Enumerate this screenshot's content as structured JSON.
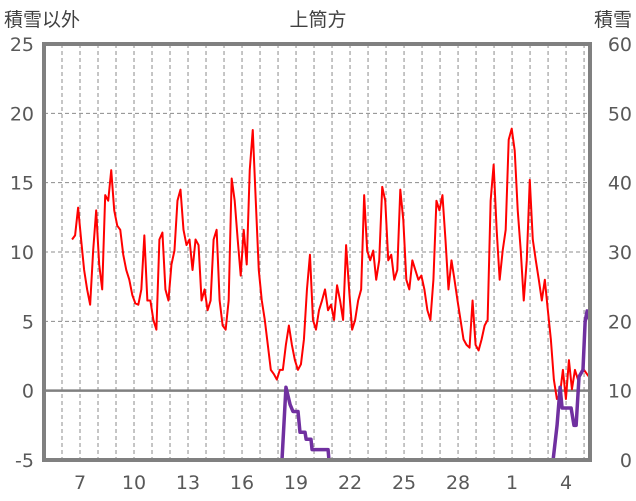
{
  "chart_data": {
    "type": "line",
    "title": "上筒方",
    "ylabel_left": "積雪以外",
    "ylabel_right": "積雪",
    "xlim": [
      5,
      35.33
    ],
    "ylim_left": [
      -5,
      25
    ],
    "ylim_right": [
      0,
      60
    ],
    "yticks_left": [
      -5,
      0,
      5,
      10,
      15,
      20,
      25
    ],
    "yticks_right": [
      0,
      10,
      20,
      30,
      40,
      50,
      60
    ],
    "xticks": [
      {
        "day": 7,
        "label": "7"
      },
      {
        "day": 10,
        "label": "10"
      },
      {
        "day": 13,
        "label": "13"
      },
      {
        "day": 16,
        "label": "16"
      },
      {
        "day": 19,
        "label": "19"
      },
      {
        "day": 22,
        "label": "22"
      },
      {
        "day": 25,
        "label": "25"
      },
      {
        "day": 28,
        "label": "28"
      },
      {
        "day": 31,
        "label": "1"
      },
      {
        "day": 34,
        "label": "4"
      }
    ],
    "grid": true,
    "series": [
      {
        "name": "積雪以外",
        "axis": "left",
        "color": "#ff0000",
        "x_start": 6.56,
        "x_end": 35.33,
        "values": [
          10.9,
          11.2,
          13.2,
          10.9,
          8.7,
          7.3,
          6.2,
          10.1,
          13.0,
          9.1,
          7.3,
          14.1,
          13.7,
          15.9,
          13.0,
          11.9,
          11.6,
          9.8,
          8.7,
          8.0,
          6.9,
          6.3,
          6.2,
          7.3,
          11.2,
          6.5,
          6.5,
          5.1,
          4.4,
          10.9,
          11.4,
          7.3,
          6.5,
          9.1,
          10.1,
          13.7,
          14.5,
          11.6,
          10.5,
          10.9,
          8.7,
          10.9,
          10.5,
          6.5,
          7.3,
          5.8,
          6.5,
          10.9,
          11.6,
          6.5,
          4.7,
          4.4,
          6.5,
          15.3,
          13.7,
          10.9,
          8.3,
          11.6,
          9.1,
          15.9,
          18.8,
          13.7,
          8.7,
          6.5,
          5.1,
          3.3,
          1.5,
          1.2,
          0.8,
          1.5,
          1.5,
          3.3,
          4.7,
          3.3,
          2.2,
          1.5,
          1.9,
          3.7,
          7.3,
          9.8,
          5.1,
          4.4,
          5.8,
          6.5,
          7.3,
          5.8,
          6.2,
          5.1,
          7.6,
          6.5,
          5.1,
          10.5,
          7.3,
          4.4,
          5.1,
          6.5,
          7.3,
          14.1,
          10.1,
          9.4,
          10.1,
          8.0,
          9.4,
          14.7,
          13.7,
          9.4,
          9.8,
          8.0,
          8.7,
          14.5,
          12.3,
          8.0,
          7.3,
          9.4,
          8.7,
          8.0,
          8.3,
          7.3,
          5.8,
          5.1,
          8.0,
          13.7,
          13.0,
          14.1,
          10.9,
          7.3,
          9.4,
          8.0,
          6.5,
          5.1,
          3.7,
          3.3,
          3.1,
          6.5,
          3.3,
          2.9,
          3.7,
          4.7,
          5.1,
          13.7,
          16.3,
          11.6,
          8.0,
          10.1,
          11.6,
          18.1,
          18.9,
          17.3,
          13.0,
          10.1,
          6.5,
          9.4,
          15.2,
          10.9,
          9.4,
          8.0,
          6.5,
          8.0,
          5.8,
          3.7,
          0.8,
          -0.6,
          -0.3,
          1.5,
          -0.6,
          2.2,
          0.1,
          1.5,
          0.8,
          1.2,
          1.5,
          1.2,
          0.9
        ]
      },
      {
        "name": "積雪",
        "axis": "right",
        "color": "#7030a0",
        "points": [
          [
            5,
            0
          ],
          [
            18.22,
            0
          ],
          [
            18.44,
            10.5
          ],
          [
            18.67,
            8
          ],
          [
            18.83,
            7
          ],
          [
            19.11,
            7
          ],
          [
            19.22,
            4
          ],
          [
            19.5,
            4
          ],
          [
            19.56,
            3
          ],
          [
            19.83,
            3
          ],
          [
            19.89,
            1.5
          ],
          [
            20.78,
            1.5
          ],
          [
            20.83,
            0
          ],
          [
            33.28,
            0
          ],
          [
            33.5,
            5
          ],
          [
            33.67,
            10.5
          ],
          [
            33.78,
            7.5
          ],
          [
            34.28,
            7.5
          ],
          [
            34.44,
            5
          ],
          [
            34.56,
            5
          ],
          [
            34.72,
            12
          ],
          [
            34.94,
            13
          ],
          [
            35.06,
            20
          ],
          [
            35.17,
            21.5
          ],
          [
            35.33,
            20
          ]
        ]
      }
    ]
  }
}
